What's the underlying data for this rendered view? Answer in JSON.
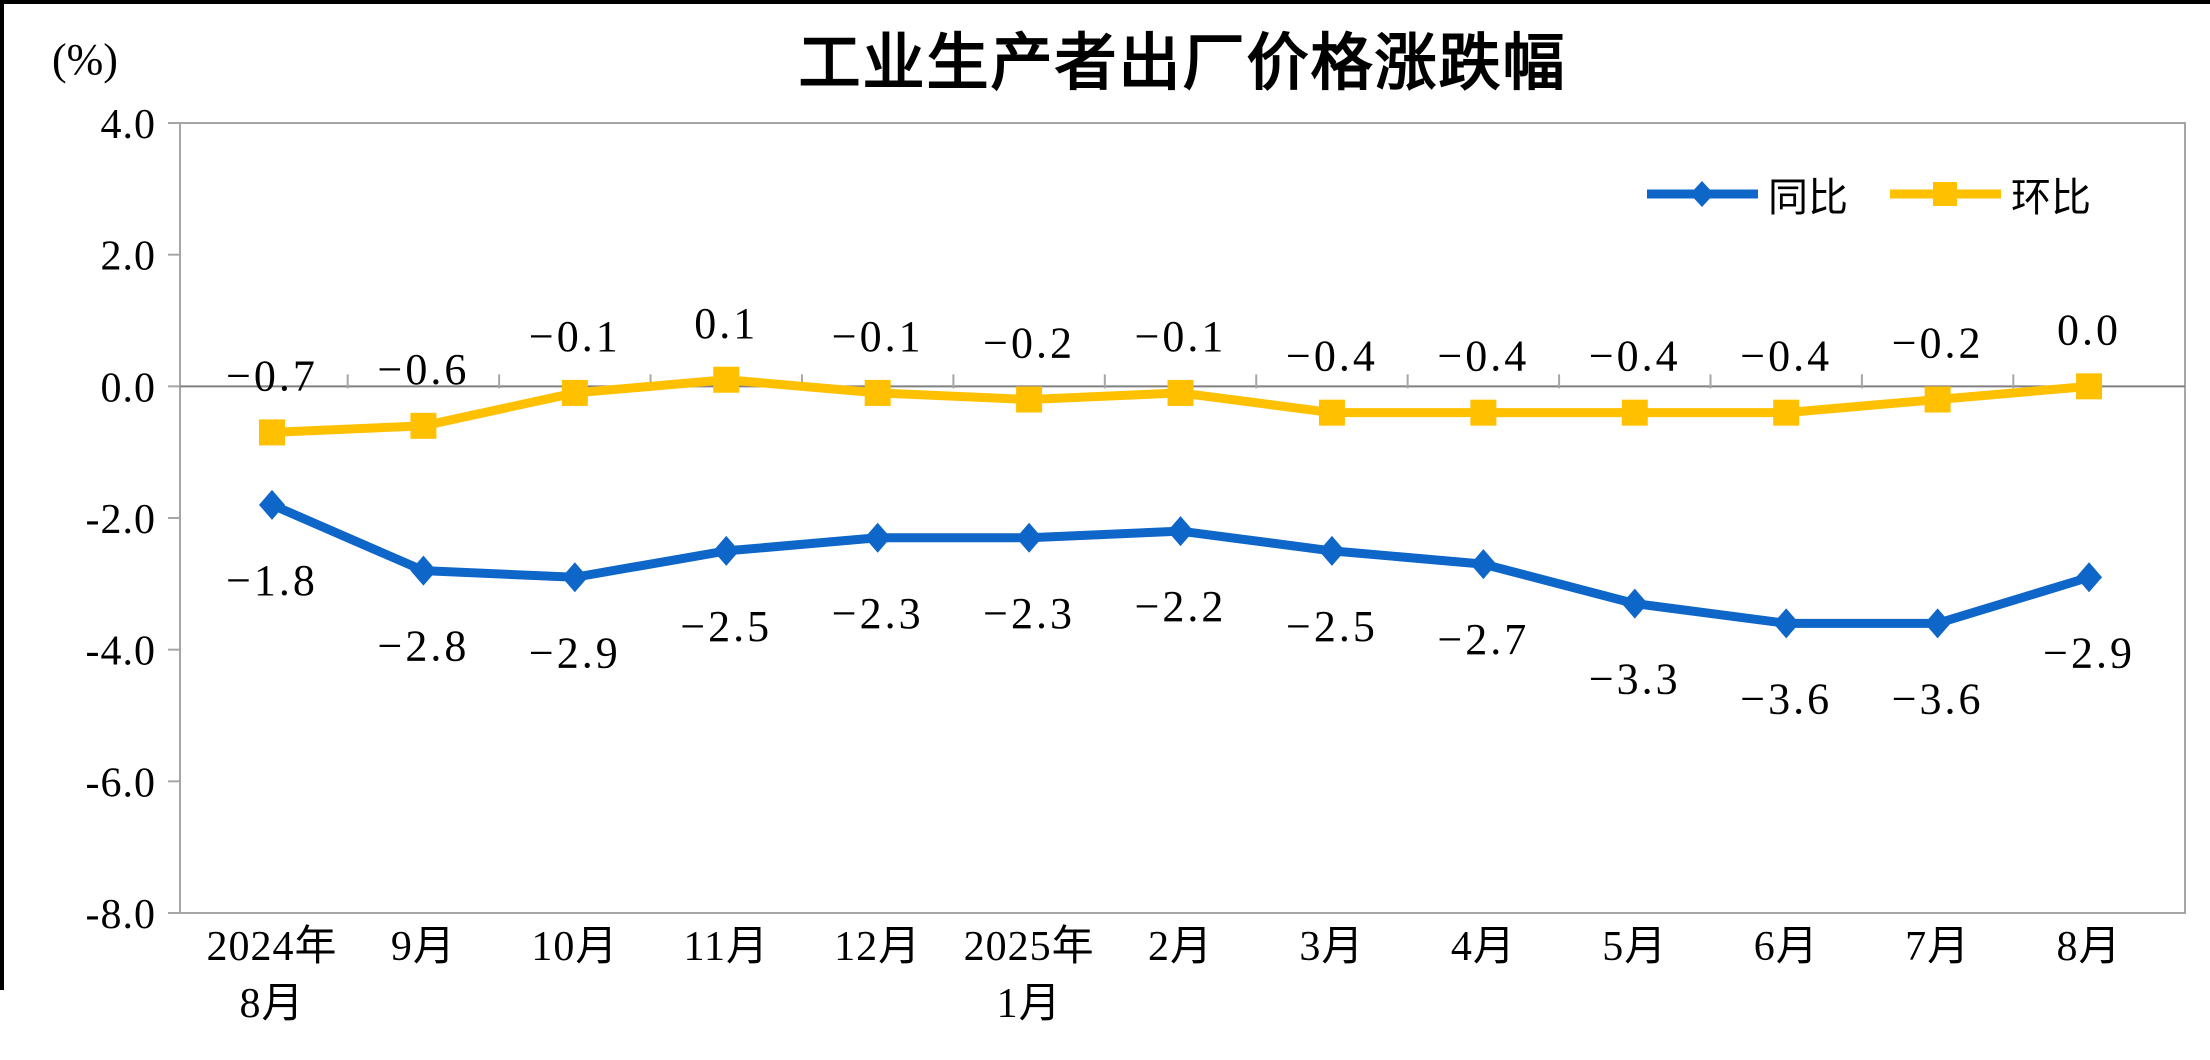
{
  "unit_label": "(%)",
  "chart_data": {
    "type": "line",
    "title": "工业生产者出厂价格涨跌幅",
    "unit": "(%)",
    "categories": [
      [
        "2024年",
        "8月"
      ],
      [
        "9月"
      ],
      [
        "10月"
      ],
      [
        "11月"
      ],
      [
        "12月"
      ],
      [
        "2025年",
        "1月"
      ],
      [
        "2月"
      ],
      [
        "3月"
      ],
      [
        "4月"
      ],
      [
        "5月"
      ],
      [
        "6月"
      ],
      [
        "7月"
      ],
      [
        "8月"
      ]
    ],
    "series": [
      {
        "name": "同比",
        "marker": "diamond",
        "color": "#0D66C8",
        "label_position": "below",
        "values": [
          -1.8,
          -2.8,
          -2.9,
          -2.5,
          -2.3,
          -2.3,
          -2.2,
          -2.5,
          -2.7,
          -3.3,
          -3.6,
          -3.6,
          -2.9
        ]
      },
      {
        "name": "环比",
        "marker": "square",
        "color": "#FFC000",
        "label_position": "above",
        "values": [
          -0.7,
          -0.6,
          -0.1,
          0.1,
          -0.1,
          -0.2,
          -0.1,
          -0.4,
          -0.4,
          -0.4,
          -0.4,
          -0.2,
          0.0
        ]
      }
    ],
    "y_axis": {
      "min": -8.0,
      "max": 4.0,
      "tick_step": 2.0,
      "ticks": [
        4.0,
        2.0,
        0.0,
        -2.0,
        -4.0,
        -6.0,
        -8.0
      ]
    },
    "legend_position": "top-right",
    "grid": false,
    "axis_color": "#A6A6A6",
    "zero_line_color": "#808080",
    "label_color": "#000000"
  }
}
